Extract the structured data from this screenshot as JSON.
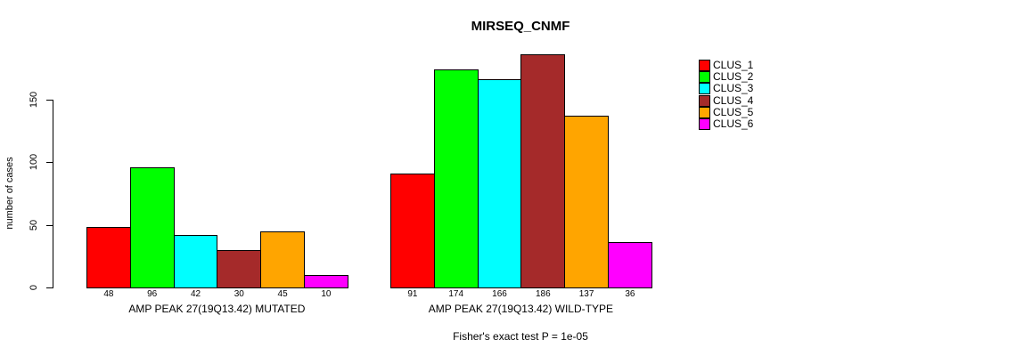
{
  "title": "MIRSEQ_CNMF",
  "footer": "Fisher's exact test P = 1e-05",
  "chart_data": {
    "type": "bar",
    "title": "MIRSEQ_CNMF",
    "xlabel": "",
    "ylabel": "number of cases",
    "yticks": [
      0,
      50,
      100,
      150
    ],
    "ylim": [
      0,
      186
    ],
    "grid": false,
    "legend_position": "right",
    "series_labels": [
      "CLUS_1",
      "CLUS_2",
      "CLUS_3",
      "CLUS_4",
      "CLUS_5",
      "CLUS_6"
    ],
    "series_colors": [
      "#FF0000",
      "#00FF00",
      "#00FFFF",
      "#A52A2A",
      "#FFA500",
      "#FF00FF"
    ],
    "groups": [
      {
        "label": "AMP PEAK 27(19Q13.42) MUTATED",
        "values": [
          48,
          96,
          42,
          30,
          45,
          10
        ]
      },
      {
        "label": "AMP PEAK 27(19Q13.42) WILD-TYPE",
        "values": [
          91,
          174,
          166,
          186,
          137,
          36
        ]
      }
    ],
    "annotation": "Fisher's exact test P = 1e-05"
  },
  "legend": {
    "items": [
      {
        "label": "CLUS_1",
        "color": "#FF0000"
      },
      {
        "label": "CLUS_2",
        "color": "#00FF00"
      },
      {
        "label": "CLUS_3",
        "color": "#00FFFF"
      },
      {
        "label": "CLUS_4",
        "color": "#A52A2A"
      },
      {
        "label": "CLUS_5",
        "color": "#FFA500"
      },
      {
        "label": "CLUS_6",
        "color": "#FF00FF"
      }
    ]
  }
}
